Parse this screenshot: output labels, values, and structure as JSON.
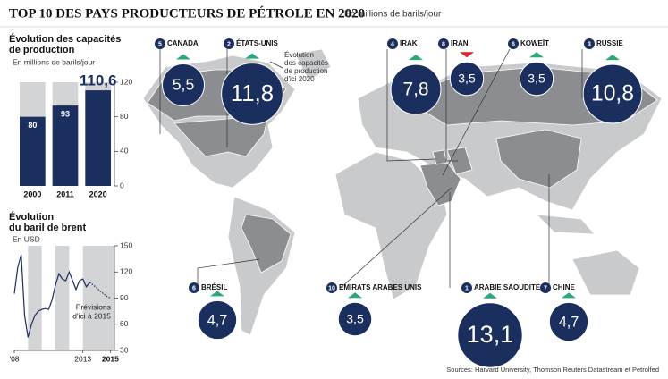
{
  "title": "TOP 10 DES PAYS PRODUCTEURS DE PÉTROLE EN 2020",
  "subtitle": "En millions de barils/jour",
  "chart_data": [
    {
      "type": "bar",
      "title": [
        "Évolution des capacités",
        "de production"
      ],
      "subtitle": "En millions de barils/jour",
      "categories": [
        "2000",
        "2011",
        "2020"
      ],
      "values": [
        80,
        93,
        110.6
      ],
      "value_labels": [
        "80",
        "93",
        "110,6"
      ],
      "color": "#1b2f5f",
      "ylim": [
        0,
        120
      ],
      "yticks": [
        0,
        40,
        80,
        120
      ]
    },
    {
      "type": "line",
      "title": [
        "Évolution",
        "du baril de brent"
      ],
      "subtitle": "En USD",
      "x": [
        2008,
        2008.25,
        2008.5,
        2008.75,
        2009,
        2009.25,
        2009.5,
        2009.75,
        2010,
        2010.25,
        2010.5,
        2010.75,
        2011,
        2011.25,
        2011.5,
        2011.75,
        2012,
        2012.25,
        2012.5,
        2012.75,
        2013,
        2013.25,
        2013.5,
        2013.75,
        2014,
        2014.25,
        2014.5,
        2014.75,
        2015
      ],
      "series": [
        {
          "color": "#1b2f5f",
          "values": [
            95,
            125,
            140,
            70,
            45,
            60,
            70,
            75,
            77,
            78,
            77,
            88,
            105,
            118,
            112,
            110,
            120,
            110,
            100,
            110,
            112,
            103,
            108,
            null,
            null,
            null,
            null,
            null,
            null
          ]
        },
        {
          "color": "#1b2f5f",
          "dashed": true,
          "values": [
            null,
            null,
            null,
            null,
            null,
            null,
            null,
            null,
            null,
            null,
            null,
            null,
            null,
            null,
            null,
            null,
            null,
            null,
            null,
            null,
            null,
            null,
            108,
            105,
            102,
            98,
            95,
            92,
            90
          ]
        }
      ],
      "annotation": [
        "Prévisions",
        "d'ici à 2015"
      ],
      "xlim": [
        2008,
        2015.3
      ],
      "xticks": [
        {
          "value": 2008,
          "label": "'08"
        },
        2013,
        2015
      ],
      "ylim": [
        30,
        150
      ],
      "yticks": [
        30,
        60,
        90,
        120,
        150
      ]
    }
  ],
  "countries": [
    {
      "rank": 5,
      "name": "CANADA",
      "value": 5.5,
      "value_label": "5,5",
      "trend": "up"
    },
    {
      "rank": 2,
      "name": "ÉTATS-UNIS",
      "value": 11.8,
      "value_label": "11,8",
      "trend": "up"
    },
    {
      "rank": 4,
      "name": "IRAK",
      "value": 7.8,
      "value_label": "7,8",
      "trend": "up"
    },
    {
      "rank": 8,
      "name": "IRAN",
      "value": 3.5,
      "value_label": "3,5",
      "trend": "down"
    },
    {
      "rank": 6,
      "name": "KOWEÏT",
      "value": 3.5,
      "value_label": "3,5",
      "trend": "up"
    },
    {
      "rank": 3,
      "name": "RUSSIE",
      "value": 10.8,
      "value_label": "10,8",
      "trend": "up"
    },
    {
      "rank": 6,
      "name": "BRÉSIL",
      "value": 4.7,
      "value_label": "4,7",
      "trend": "up"
    },
    {
      "rank": 10,
      "name": "EMIRATS ARABES UNIS",
      "value": 3.5,
      "value_label": "3,5",
      "trend": "up"
    },
    {
      "rank": 1,
      "name": "ARABIE SAOUDITE",
      "value": 13.1,
      "value_label": "13,1",
      "trend": "up"
    },
    {
      "rank": 7,
      "name": "CHINE",
      "value": 4.7,
      "value_label": "4,7",
      "trend": "up"
    }
  ],
  "annotation": [
    "Évolution",
    "des capacités",
    "de production",
    "d'ici 2020"
  ],
  "source": "Sources: Harvard University, Thomson Reuters Datastream et Petrolfed"
}
